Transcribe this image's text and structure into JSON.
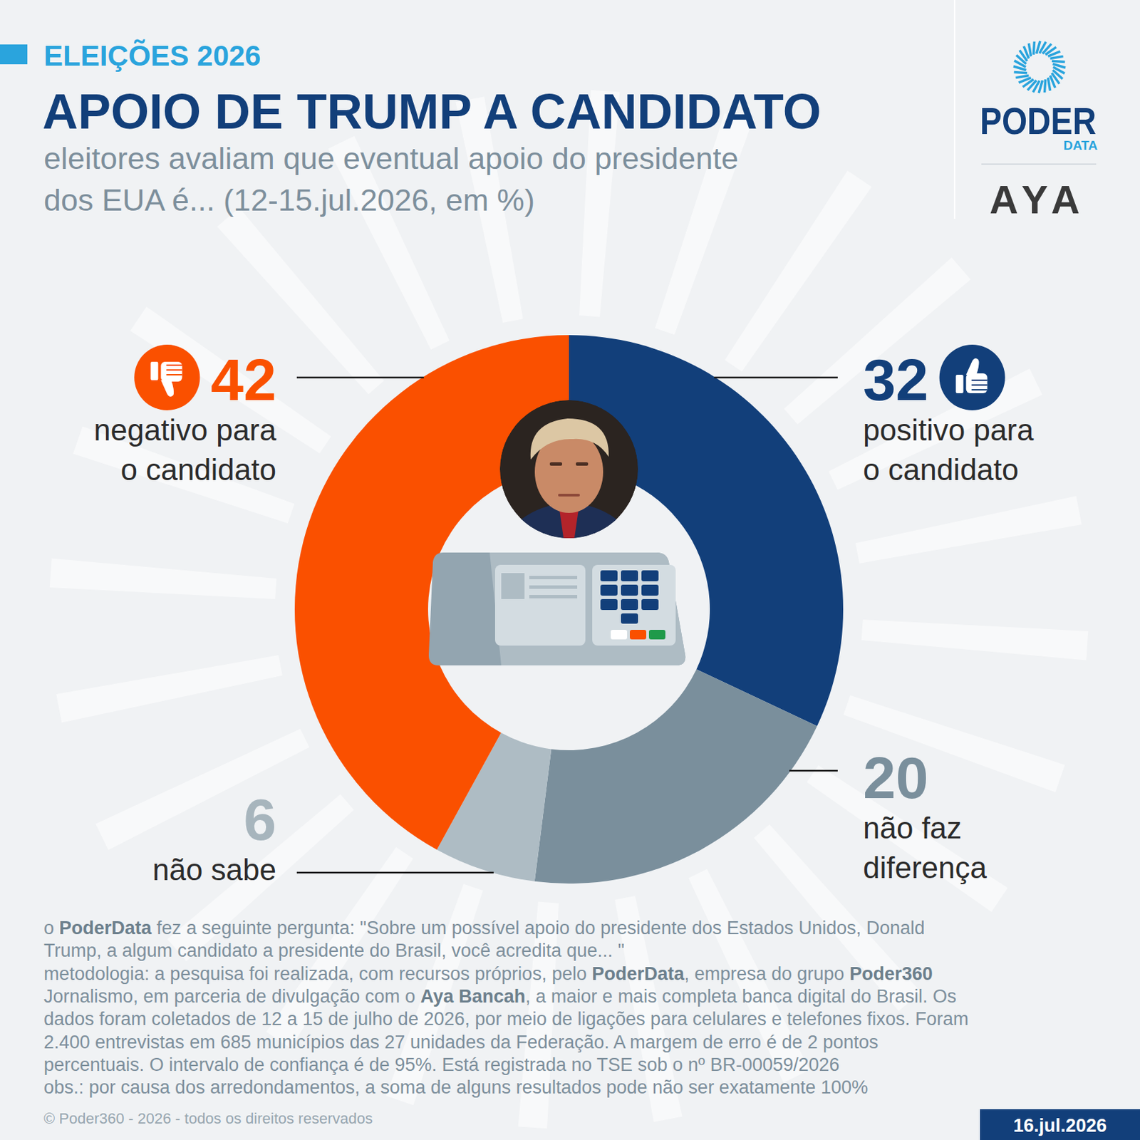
{
  "chart_data": {
    "type": "donut",
    "kicker": "ELEIÇÕES 2026",
    "title": "APOIO DE TRUMP A CANDIDATO",
    "subtitle": [
      "eleitores avaliam que eventual apoio do presidente",
      "dos EUA é... (12-15.jul.2026, em %)"
    ],
    "categories": [
      "positivo para\no candidato",
      "não faz\ndiferença",
      "não sabe",
      "negativo para\no candidato"
    ],
    "values": [
      32,
      20,
      6,
      42
    ],
    "colors": [
      "#123f7a",
      "#7a8f9c",
      "#aebcc4",
      "#fa5000"
    ],
    "data_labels": true,
    "logos": [
      "PODER",
      "DATA",
      "AYA"
    ],
    "note": [
      "o PoderData fez a seguinte pergunta: \"Sobre um possível apoio do presidente dos Estados Unidos, Donald",
      "Trump, a algum candidato a presidente do Brasil, você acredita que... \"",
      "metodologia: a pesquisa foi realizada, com recursos próprios, pelo PoderData, empresa do grupo Poder360",
      "Jornalismo, em parceria de divulgação com o Aya Bancah, a maior e mais completa banca digital do Brasil. Os",
      "dados foram coletados de 12 a 15 de julho de 2026, por meio de ligações para celulares e telefones fixos. Foram",
      "2.400 entrevistas em 685 municípios das 27 unidades da Federação. A margem de erro é de 2 pontos",
      "percentuais. O intervalo de confiança é de 95%. Está registrada no TSE sob o nº BR-00059/2026",
      "obs.: por causa dos arredondamentos, a soma de alguns resultados pode não ser exatamente 100%"
    ],
    "note_bold": [
      "PoderData",
      "Poder360",
      "Aya Bancah"
    ],
    "copyright": "© Poder360 - 2026 - todos os direitos reservados",
    "date": "16.jul.2026"
  }
}
